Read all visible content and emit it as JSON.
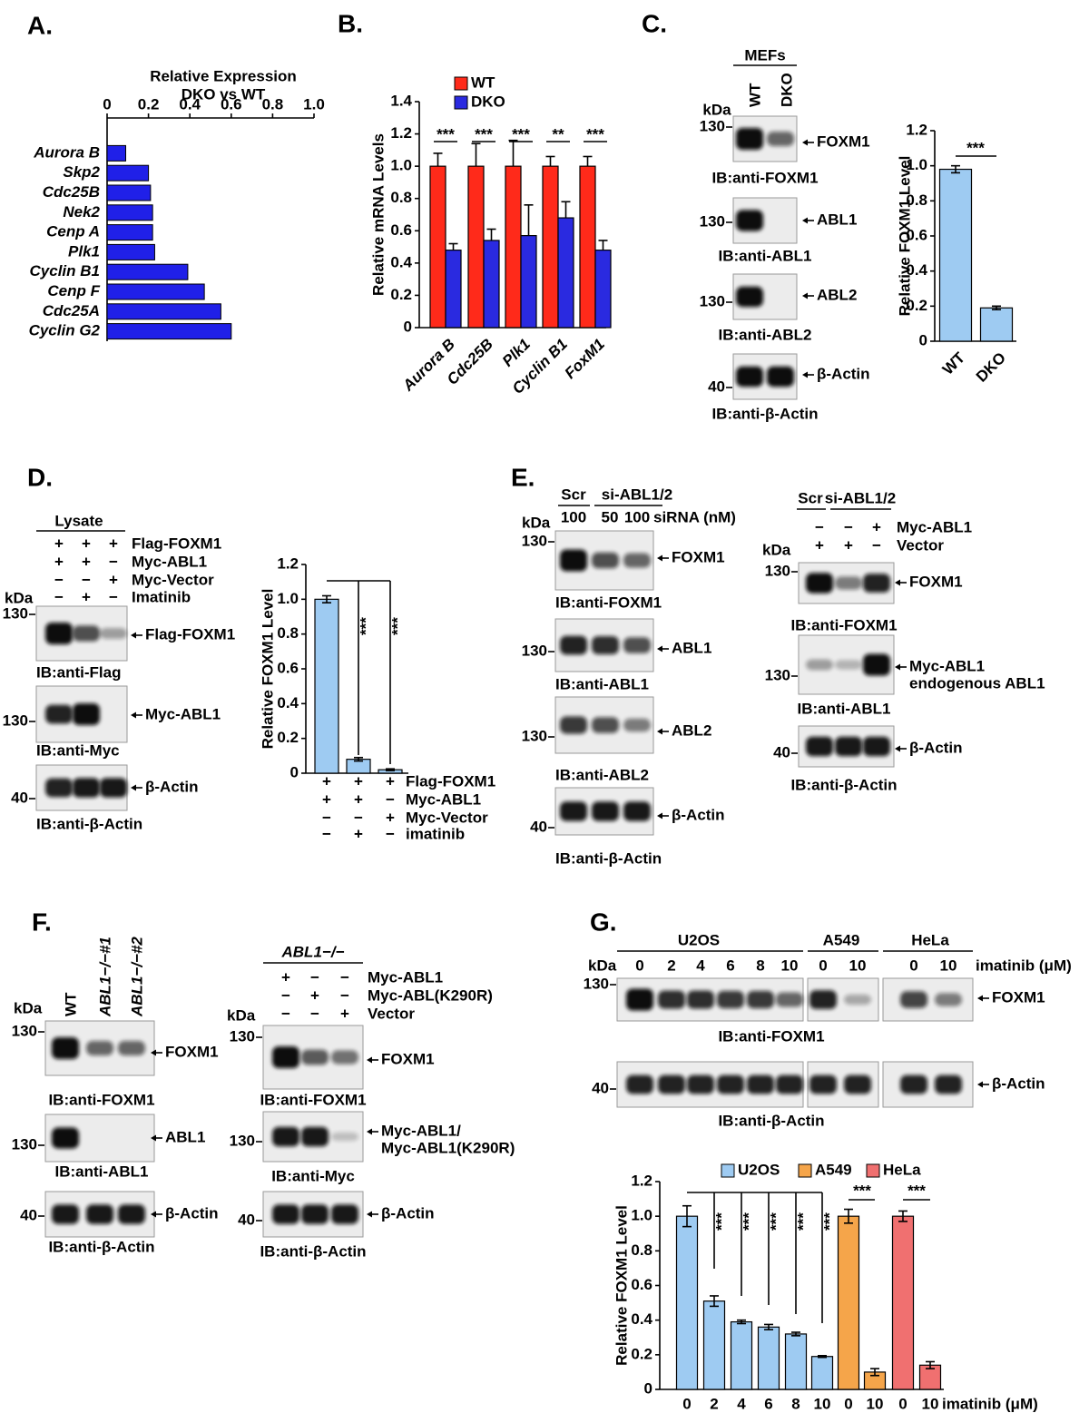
{
  "panel_labels": [
    "A.",
    "B.",
    "C.",
    "D.",
    "E.",
    "F.",
    "G."
  ],
  "chart_data": [
    {
      "type": "barh",
      "title": [
        "Relative Expression",
        "DKO vs WT"
      ],
      "categories": [
        "Aurora B",
        "Skp2",
        "Cdc25B",
        "Nek2",
        "Cenp A",
        "Plk1",
        "Cyclin B1",
        "Cenp F",
        "Cdc25A",
        "Cyclin G2"
      ],
      "values": [
        0.09,
        0.2,
        0.21,
        0.22,
        0.22,
        0.23,
        0.39,
        0.47,
        0.55,
        0.6
      ],
      "color": "#2020e8",
      "xlim": [
        0,
        1
      ],
      "xticks": [
        0,
        0.2,
        0.4,
        0.6,
        0.8,
        {
          "value": 1,
          "label": "1.0"
        }
      ]
    },
    {
      "type": "bar",
      "ylabel": "Relative mRNA Levels",
      "categories": [
        "Aurora B",
        "Cdc25B",
        "Plk1",
        "Cyclin B1",
        "FoxM1"
      ],
      "series": [
        {
          "name": "WT",
          "color": "#ff2a1a",
          "values": [
            1,
            1,
            1,
            1,
            1
          ],
          "errors": [
            0.08,
            0.14,
            0.16,
            0.06,
            0.06
          ]
        },
        {
          "name": "DKO",
          "color": "#2a2ae0",
          "values": [
            0.48,
            0.54,
            0.57,
            0.68,
            0.48
          ],
          "errors": [
            0.04,
            0.07,
            0.19,
            0.1,
            0.06
          ]
        }
      ],
      "ylim": [
        0,
        1.4
      ],
      "yticks": [
        0,
        0.2,
        0.4,
        0.6,
        0.8,
        {
          "value": 1,
          "label": "1.0"
        },
        1.2,
        1.4
      ],
      "significance": [
        "***",
        "***",
        "***",
        "**",
        "***"
      ]
    },
    {
      "type": "bar",
      "ylabel": "Relative FOXM1 Level",
      "categories": [
        "WT",
        "DKO"
      ],
      "values": [
        0.98,
        0.19
      ],
      "errors": [
        0.02,
        0.01
      ],
      "color": "#9ecbf2",
      "ylim": [
        0,
        1.2
      ],
      "yticks": [
        0,
        0.2,
        0.4,
        0.6,
        0.8,
        {
          "value": 1,
          "label": "1.0"
        },
        1.2
      ],
      "significance": [
        "***"
      ]
    },
    {
      "type": "bar",
      "ylabel": "Relative FOXM1 Level",
      "values": [
        1,
        0.08,
        0.02
      ],
      "errors": [
        0.02,
        0.01,
        0.005
      ],
      "color": "#9ecbf2",
      "ylim": [
        0,
        1.2
      ],
      "yticks": [
        0,
        0.2,
        0.4,
        0.6,
        0.8,
        {
          "value": 1,
          "label": "1.0"
        },
        1.2
      ],
      "conditions": [
        {
          "name": "Flag-FOXM1",
          "levels": [
            "+",
            "+",
            "+"
          ]
        },
        {
          "name": "Myc-ABL1",
          "levels": [
            "+",
            "+",
            "−"
          ]
        },
        {
          "name": "Myc-Vector",
          "levels": [
            "−",
            "−",
            "+"
          ]
        },
        {
          "name": "imatinib",
          "levels": [
            "−",
            "+",
            "−"
          ]
        }
      ],
      "significance": [
        "***",
        "***"
      ]
    },
    {
      "type": "bar",
      "ylabel": "Relative FOXM1 Level",
      "xlabel": "imatinib (μM)",
      "categories": [
        "0",
        "2",
        "4",
        "6",
        "8",
        "10",
        "0",
        "10",
        "0",
        "10"
      ],
      "series": [
        {
          "name": "U2OS",
          "color": "#9ecbf2",
          "values": [
            1,
            0.51,
            0.39,
            0.36,
            0.32,
            0.19,
            null,
            null,
            null,
            null
          ],
          "errors": [
            0.06,
            0.03,
            0.01,
            0.015,
            0.01,
            0.005,
            null,
            null,
            null,
            null
          ]
        },
        {
          "name": "A549",
          "color": "#f5a54a",
          "values": [
            null,
            null,
            null,
            null,
            null,
            null,
            1,
            0.1,
            null,
            null
          ],
          "errors": [
            null,
            null,
            null,
            null,
            null,
            null,
            0.04,
            0.02,
            null,
            null
          ]
        },
        {
          "name": "HeLa",
          "color": "#f07070",
          "values": [
            null,
            null,
            null,
            null,
            null,
            null,
            null,
            null,
            1,
            0.14
          ],
          "errors": [
            null,
            null,
            null,
            null,
            null,
            null,
            null,
            null,
            0.03,
            0.02
          ]
        }
      ],
      "ylim": [
        0,
        1.2
      ],
      "yticks": [
        0,
        0.2,
        0.4,
        0.6,
        0.8,
        {
          "value": 1,
          "label": "1.0"
        },
        1.2
      ],
      "significance": [
        "***",
        "***",
        "***",
        "***",
        "***",
        "***",
        "***"
      ]
    }
  ],
  "panel_c": {
    "header": "MEFs",
    "lanes": [
      "WT",
      "DKO"
    ],
    "kda": "kDa",
    "blots": [
      {
        "marker": 130,
        "band": "FOXM1",
        "ib": "IB:anti-FOXM1"
      },
      {
        "marker": 130,
        "band": "ABL1",
        "ib": "IB:anti-ABL1"
      },
      {
        "marker": 130,
        "band": "ABL2",
        "ib": "IB:anti-ABL2"
      },
      {
        "marker": 40,
        "band": "β-Actin",
        "ib": "IB:anti-β-Actin"
      }
    ]
  },
  "panel_d": {
    "header": "Lysate",
    "conditions": [
      {
        "name": "Flag-FOXM1",
        "levels": [
          "+",
          "+",
          "+"
        ]
      },
      {
        "name": "Myc-ABL1",
        "levels": [
          "+",
          "+",
          "−"
        ]
      },
      {
        "name": "Myc-Vector",
        "levels": [
          "−",
          "−",
          "+"
        ]
      },
      {
        "name": "Imatinib",
        "levels": [
          "−",
          "+",
          "−"
        ]
      }
    ],
    "kda": "kDa",
    "blots": [
      {
        "marker": 130,
        "band": "Flag-FOXM1",
        "ib": "IB:anti-Flag"
      },
      {
        "marker": 130,
        "band": "Myc-ABL1",
        "ib": "IB:anti-Myc"
      },
      {
        "marker": 40,
        "band": "β-Actin",
        "ib": "IB:anti-β-Actin"
      }
    ]
  },
  "panel_e_left": {
    "groups": [
      "Scr",
      "si-ABL1/2"
    ],
    "doses": [
      100,
      50,
      100
    ],
    "dose_label": "siRNA (nM)",
    "kda": "kDa",
    "blots": [
      {
        "marker": 130,
        "band": "FOXM1",
        "ib": "IB:anti-FOXM1"
      },
      {
        "marker": 130,
        "band": "ABL1",
        "ib": "IB:anti-ABL1"
      },
      {
        "marker": 130,
        "band": "ABL2",
        "ib": "IB:anti-ABL2"
      },
      {
        "marker": 40,
        "band": "β-Actin",
        "ib": "IB:anti-β-Actin"
      }
    ]
  },
  "panel_e_right": {
    "groups": [
      "Scr",
      "si-ABL1/2"
    ],
    "conditions": [
      {
        "name": "Myc-ABL1",
        "levels": [
          "−",
          "−",
          "+"
        ]
      },
      {
        "name": "Vector",
        "levels": [
          "+",
          "+",
          "−"
        ]
      }
    ],
    "kda": "kDa",
    "blots": [
      {
        "marker": 130,
        "band": "FOXM1",
        "ib": "IB:anti-FOXM1"
      },
      {
        "marker": 130,
        "band": [
          "Myc-ABL1",
          "endogenous ABL1"
        ],
        "ib": "IB:anti-ABL1"
      },
      {
        "marker": 40,
        "band": "β-Actin",
        "ib": "IB:anti-β-Actin"
      }
    ]
  },
  "panel_f_left": {
    "lanes": [
      "WT",
      "ABL1−/−#1",
      "ABL1−/−#2"
    ],
    "kda": "kDa",
    "blots": [
      {
        "marker": 130,
        "band": "FOXM1",
        "ib": "IB:anti-FOXM1"
      },
      {
        "marker": 130,
        "band": "ABL1",
        "ib": "IB:anti-ABL1"
      },
      {
        "marker": 40,
        "band": "β-Actin",
        "ib": "IB:anti-β-Actin"
      }
    ]
  },
  "panel_f_right": {
    "header": "ABL1−/−",
    "conditions": [
      {
        "name": "Myc-ABL1",
        "levels": [
          "+",
          "−",
          "−"
        ]
      },
      {
        "name": "Myc-ABL(K290R)",
        "levels": [
          "−",
          "+",
          "−"
        ]
      },
      {
        "name": "Vector",
        "levels": [
          "−",
          "−",
          "+"
        ]
      }
    ],
    "kda": "kDa",
    "blots": [
      {
        "marker": 130,
        "band": "FOXM1",
        "ib": "IB:anti-FOXM1"
      },
      {
        "marker": 130,
        "band": [
          "Myc-ABL1/",
          "Myc-ABL1(K290R)"
        ],
        "ib": "IB:anti-Myc"
      },
      {
        "marker": 40,
        "band": "β-Actin",
        "ib": "IB:anti-β-Actin"
      }
    ]
  },
  "panel_g": {
    "groups": [
      "U2OS",
      "A549",
      "HeLa"
    ],
    "doses": [
      [
        0,
        2,
        4,
        6,
        8,
        10
      ],
      [
        0,
        10
      ],
      [
        0,
        10
      ]
    ],
    "dose_label": "imatinib (μM)",
    "kda": "kDa",
    "blots": [
      {
        "marker": 130,
        "band": "FOXM1",
        "ib": "IB:anti-FOXM1"
      },
      {
        "marker": 40,
        "band": "β-Actin",
        "ib": "IB:anti-β-Actin"
      }
    ]
  }
}
